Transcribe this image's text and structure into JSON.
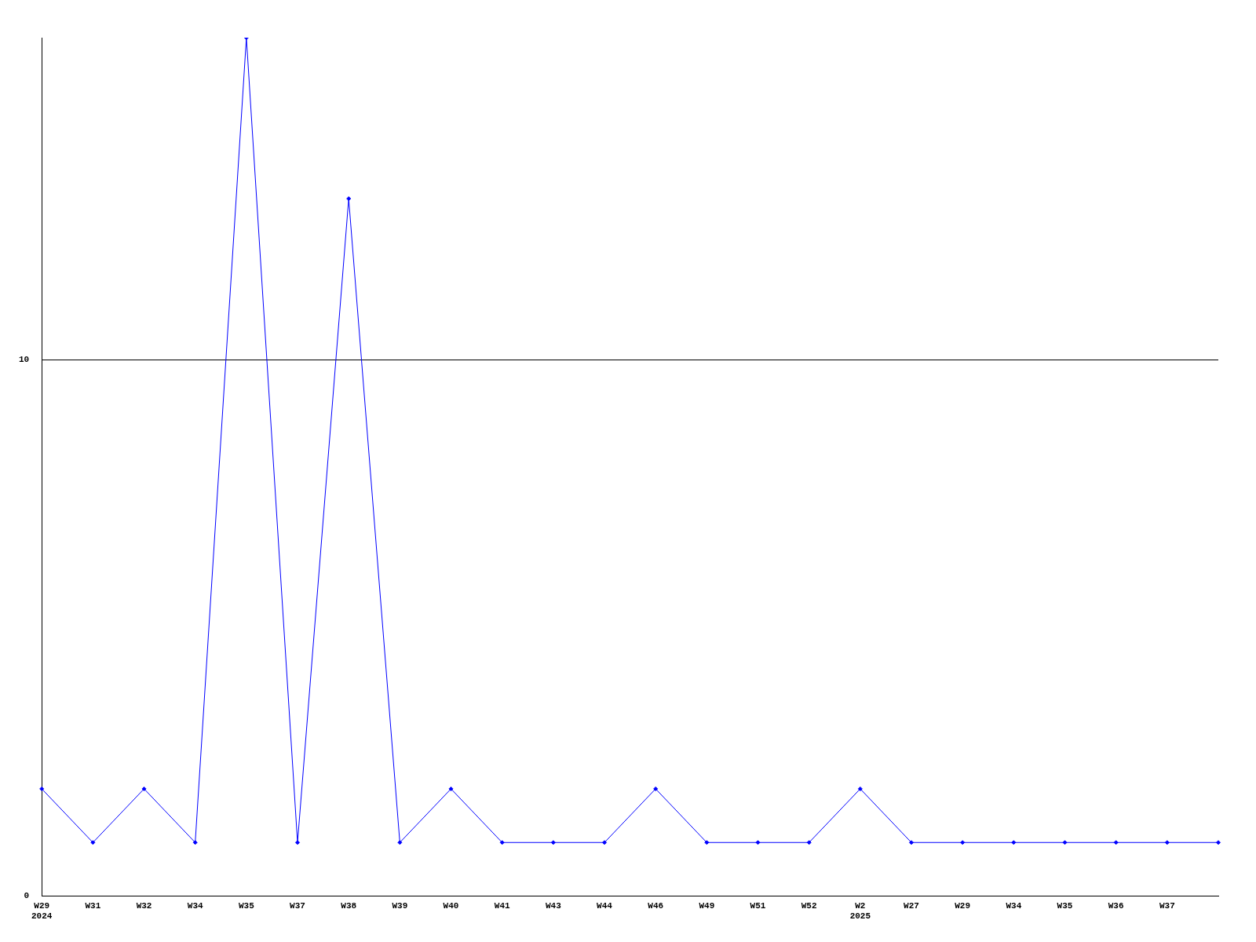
{
  "chart_data": {
    "type": "line",
    "categories": [
      "W29\n2024",
      "W31",
      "W32",
      "W34",
      "W35",
      "W37",
      "W38",
      "W39",
      "W40",
      "W41",
      "W43",
      "W44",
      "W46",
      "W49",
      "W51",
      "W52",
      "W2\n2025",
      "W27",
      "W29",
      "W34",
      "W35",
      "W36",
      "W37",
      null
    ],
    "series": [
      {
        "color": "#0000ff",
        "values": [
          2,
          1,
          2,
          1,
          16,
          1,
          13,
          1,
          2,
          1,
          1,
          1,
          2,
          1,
          1,
          1,
          2,
          1,
          1,
          1,
          1,
          1,
          1,
          1
        ]
      }
    ],
    "ylim": [
      0,
      16
    ],
    "yticks": [
      0,
      10
    ],
    "grid": "y",
    "legend": false,
    "marker": "diamond",
    "line_style": "solid"
  }
}
